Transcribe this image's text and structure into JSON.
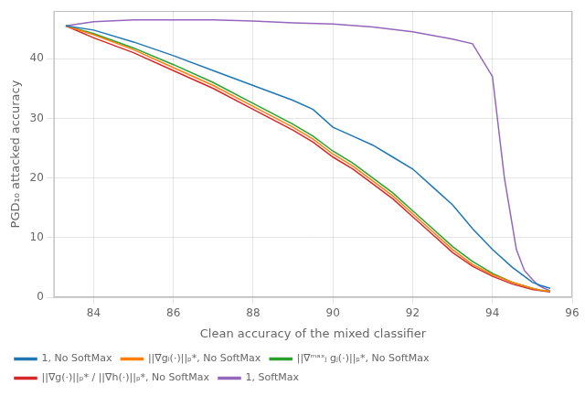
{
  "chart_data": {
    "type": "line",
    "xlabel": "Clean accuracy of the mixed classifier",
    "ylabel": "PGD₁₀ attacked accuracy",
    "xlim": [
      83,
      96
    ],
    "ylim": [
      0,
      48
    ],
    "xticks": [
      84,
      86,
      88,
      90,
      92,
      94,
      96
    ],
    "yticks": [
      0,
      10,
      20,
      30,
      40
    ],
    "grid": true,
    "legend": "lower left",
    "series": [
      {
        "name": "1, No SoftMax",
        "color": "#1f77b4",
        "x": [
          83.3,
          84.0,
          85.0,
          86.0,
          87.0,
          88.0,
          89.0,
          89.5,
          90.0,
          90.5,
          91.0,
          91.5,
          92.0,
          92.5,
          93.0,
          93.5,
          94.0,
          94.5,
          95.0,
          95.2,
          95.45
        ],
        "values": [
          45.5,
          44.8,
          42.8,
          40.5,
          38.0,
          35.5,
          33.0,
          31.5,
          28.5,
          27.0,
          25.5,
          23.5,
          21.5,
          18.5,
          15.5,
          11.5,
          8.0,
          5.0,
          2.5,
          2.0,
          1.5
        ]
      },
      {
        "name": "||∇gᵢ(·)||ₚ*, No SoftMax",
        "color": "#ff7f0e",
        "x": [
          83.3,
          84.0,
          85.0,
          86.0,
          87.0,
          88.0,
          89.0,
          89.5,
          90.0,
          90.5,
          91.0,
          91.5,
          92.0,
          92.5,
          93.0,
          93.5,
          94.0,
          94.5,
          95.0,
          95.2,
          95.45
        ],
        "values": [
          45.5,
          44.0,
          41.5,
          38.5,
          35.5,
          32.0,
          28.5,
          26.5,
          24.0,
          22.0,
          19.5,
          17.0,
          14.0,
          11.0,
          8.0,
          5.5,
          3.8,
          2.5,
          1.5,
          1.2,
          1.0
        ]
      },
      {
        "name": "||∇ᵐᵃˣⱼ gⱼ(·)||ₚ*, No SoftMax",
        "color": "#2ca02c",
        "x": [
          83.3,
          84.0,
          85.0,
          86.0,
          87.0,
          88.0,
          89.0,
          89.5,
          90.0,
          90.5,
          91.0,
          91.5,
          92.0,
          92.5,
          93.0,
          93.5,
          94.0,
          94.5,
          95.0,
          95.2,
          95.45
        ],
        "values": [
          45.5,
          44.2,
          41.8,
          39.0,
          36.0,
          32.5,
          29.0,
          27.0,
          24.5,
          22.5,
          20.0,
          17.5,
          14.5,
          11.5,
          8.5,
          6.0,
          4.0,
          2.5,
          1.5,
          1.2,
          1.0
        ]
      },
      {
        "name": "||∇g(·)||ₚ* / ||∇h(·)||ₚ*, No SoftMax",
        "color": "#d62728",
        "x": [
          83.3,
          84.0,
          85.0,
          86.0,
          87.0,
          88.0,
          89.0,
          89.5,
          90.0,
          90.5,
          91.0,
          91.5,
          92.0,
          92.5,
          93.0,
          93.5,
          94.0,
          94.5,
          95.0,
          95.2,
          95.45
        ],
        "values": [
          45.5,
          43.5,
          41.0,
          38.0,
          35.0,
          31.5,
          28.0,
          26.0,
          23.5,
          21.5,
          19.0,
          16.5,
          13.5,
          10.5,
          7.5,
          5.2,
          3.5,
          2.2,
          1.3,
          1.1,
          0.9
        ]
      },
      {
        "name": "1, SoftMax",
        "color": "#9467bd",
        "x": [
          83.3,
          84.0,
          85.0,
          86.0,
          87.0,
          88.0,
          89.0,
          90.0,
          91.0,
          92.0,
          93.0,
          93.5,
          94.0,
          94.3,
          94.6,
          94.8,
          95.0,
          95.15,
          95.3,
          95.4,
          95.45
        ],
        "values": [
          45.5,
          46.2,
          46.5,
          46.5,
          46.5,
          46.3,
          46.0,
          45.8,
          45.3,
          44.5,
          43.3,
          42.5,
          37.0,
          20.0,
          8.0,
          4.5,
          3.0,
          2.0,
          1.5,
          1.2,
          1.0
        ]
      }
    ]
  }
}
